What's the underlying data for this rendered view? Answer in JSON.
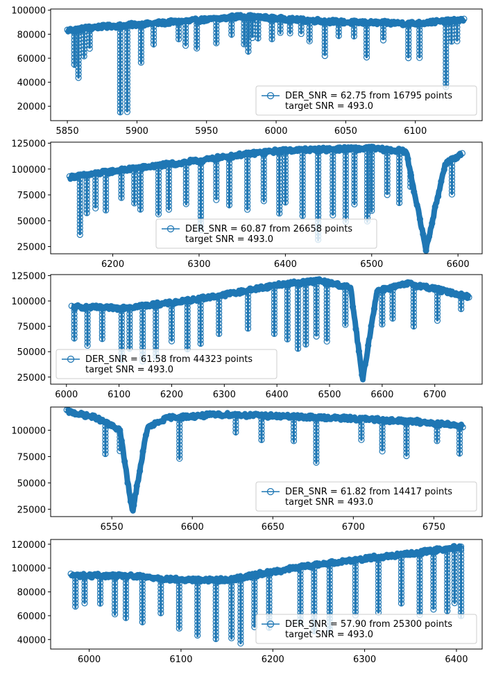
{
  "chart_data": [
    {
      "type": "line",
      "marker": "open-circle",
      "color": "#1f77b4",
      "xlim": [
        5838,
        6148
      ],
      "ylim": [
        8000,
        101000
      ],
      "xticks": [
        "5850",
        "5900",
        "5950",
        "6000",
        "6050",
        "6100"
      ],
      "yticks": [
        "20000",
        "40000",
        "60000",
        "80000",
        "100000"
      ],
      "legend": {
        "position": "lower-right",
        "lines": [
          "DER_SNR = 62.75 from 16795 points",
          "target SNR = 493.0"
        ]
      },
      "series": [
        {
          "continuum": [
            [
              5850,
              83000
            ],
            [
              5870,
              86000
            ],
            [
              5900,
              88000
            ],
            [
              5950,
              92000
            ],
            [
              5975,
              95000
            ],
            [
              6000,
              93000
            ],
            [
              6050,
              90000
            ],
            [
              6100,
              89000
            ],
            [
              6135,
              92000
            ]
          ],
          "dips": [
            [
              5855,
              52000
            ],
            [
              5858,
              43000
            ],
            [
              5862,
              60000
            ],
            [
              5866,
              68000
            ],
            [
              5888,
              13000
            ],
            [
              5893,
              15000
            ],
            [
              5903,
              55000
            ],
            [
              5912,
              69000
            ],
            [
              5930,
              74000
            ],
            [
              5935,
              70000
            ],
            [
              5943,
              67000
            ],
            [
              5957,
              71000
            ],
            [
              5968,
              77000
            ],
            [
              5977,
              70000
            ],
            [
              5980,
              63000
            ],
            [
              5983,
              77000
            ],
            [
              5987,
              74000
            ],
            [
              5997,
              74000
            ],
            [
              6003,
              80000
            ],
            [
              6010,
              80000
            ],
            [
              6018,
              80000
            ],
            [
              6024,
              73000
            ],
            [
              6035,
              62000
            ],
            [
              6045,
              76000
            ],
            [
              6056,
              76000
            ],
            [
              6065,
              60000
            ],
            [
              6077,
              75000
            ],
            [
              6095,
              60000
            ],
            [
              6103,
              60000
            ],
            [
              6122,
              35000
            ],
            [
              6126,
              72000
            ],
            [
              6130,
              74000
            ]
          ]
        }
      ]
    },
    {
      "type": "line",
      "marker": "open-circle",
      "color": "#1f77b4",
      "xlim": [
        6128,
        6628
      ],
      "ylim": [
        18000,
        126000
      ],
      "xticks": [
        "6200",
        "6300",
        "6400",
        "6500",
        "6600"
      ],
      "yticks": [
        "25000",
        "50000",
        "75000",
        "100000",
        "125000"
      ],
      "legend": {
        "position": "lower-center",
        "lines": [
          "DER_SNR = 60.87 from 26658 points",
          "target SNR = 493.0"
        ]
      },
      "series": [
        {
          "continuum": [
            [
              6150,
              92000
            ],
            [
              6200,
              98000
            ],
            [
              6250,
              103000
            ],
            [
              6300,
              108000
            ],
            [
              6350,
              114000
            ],
            [
              6400,
              118000
            ],
            [
              6450,
              119000
            ],
            [
              6500,
              120000
            ],
            [
              6540,
              117000
            ],
            [
              6563,
              22000
            ],
            [
              6585,
              105000
            ],
            [
              6605,
              115000
            ]
          ],
          "dips": [
            [
              6162,
              36000
            ],
            [
              6170,
              55000
            ],
            [
              6180,
              62000
            ],
            [
              6192,
              58000
            ],
            [
              6210,
              70000
            ],
            [
              6225,
              65000
            ],
            [
              6232,
              58000
            ],
            [
              6253,
              55000
            ],
            [
              6265,
              60000
            ],
            [
              6285,
              65000
            ],
            [
              6302,
              40000
            ],
            [
              6320,
              70000
            ],
            [
              6335,
              62000
            ],
            [
              6356,
              60000
            ],
            [
              6375,
              68000
            ],
            [
              6393,
              55000
            ],
            [
              6400,
              65000
            ],
            [
              6420,
              52000
            ],
            [
              6438,
              30000
            ],
            [
              6455,
              55000
            ],
            [
              6470,
              48000
            ],
            [
              6480,
              65000
            ],
            [
              6495,
              48000
            ],
            [
              6500,
              58000
            ],
            [
              6518,
              75000
            ],
            [
              6532,
              65000
            ],
            [
              6545,
              80000
            ],
            [
              6593,
              75000
            ]
          ]
        }
      ]
    },
    {
      "type": "line",
      "marker": "open-circle",
      "color": "#1f77b4",
      "xlim": [
        5970,
        6790
      ],
      "ylim": [
        18000,
        126000
      ],
      "xticks": [
        "6000",
        "6100",
        "6200",
        "6300",
        "6400",
        "6500",
        "6600",
        "6700"
      ],
      "yticks": [
        "25000",
        "50000",
        "75000",
        "100000",
        "125000"
      ],
      "legend": {
        "position": "lower-left",
        "lines": [
          "DER_SNR = 61.58 from 44323 points",
          "target SNR = 493.0"
        ]
      },
      "series": [
        {
          "continuum": [
            [
              6010,
              94000
            ],
            [
              6100,
              93000
            ],
            [
              6200,
              98000
            ],
            [
              6300,
              106000
            ],
            [
              6400,
              116000
            ],
            [
              6480,
              120000
            ],
            [
              6540,
              113000
            ],
            [
              6563,
              22000
            ],
            [
              6590,
              110000
            ],
            [
              6650,
              117000
            ],
            [
              6700,
              112000
            ],
            [
              6765,
              104000
            ]
          ],
          "dips": [
            [
              6015,
              60000
            ],
            [
              6040,
              55000
            ],
            [
              6068,
              60000
            ],
            [
              6105,
              40000
            ],
            [
              6120,
              50000
            ],
            [
              6145,
              40000
            ],
            [
              6170,
              42000
            ],
            [
              6200,
              60000
            ],
            [
              6230,
              50000
            ],
            [
              6255,
              55000
            ],
            [
              6290,
              65000
            ],
            [
              6345,
              70000
            ],
            [
              6395,
              65000
            ],
            [
              6420,
              60000
            ],
            [
              6440,
              50000
            ],
            [
              6455,
              55000
            ],
            [
              6475,
              65000
            ],
            [
              6495,
              60000
            ],
            [
              6530,
              75000
            ],
            [
              6600,
              75000
            ],
            [
              6620,
              80000
            ],
            [
              6660,
              72000
            ],
            [
              6705,
              80000
            ],
            [
              6750,
              90000
            ]
          ]
        }
      ]
    },
    {
      "type": "line",
      "marker": "open-circle",
      "color": "#1f77b4",
      "xlim": [
        6512,
        6780
      ],
      "ylim": [
        18000,
        122000
      ],
      "xticks": [
        "6550",
        "6600",
        "6650",
        "6700",
        "6750"
      ],
      "yticks": [
        "25000",
        "50000",
        "75000",
        "100000"
      ],
      "legend": {
        "position": "lower-right",
        "lines": [
          "DER_SNR = 61.82 from 14417 points",
          "target SNR = 493.0"
        ]
      },
      "series": [
        {
          "continuum": [
            [
              6522,
              118000
            ],
            [
              6540,
              112000
            ],
            [
              6555,
              100000
            ],
            [
              6562.8,
              22000
            ],
            [
              6572,
              102000
            ],
            [
              6585,
              112000
            ],
            [
              6620,
              115000
            ],
            [
              6660,
              113000
            ],
            [
              6700,
              111000
            ],
            [
              6740,
              108000
            ],
            [
              6768,
              104000
            ]
          ],
          "dips": [
            [
              6546,
              75000
            ],
            [
              6555,
              80000
            ],
            [
              6592,
              72000
            ],
            [
              6627,
              95000
            ],
            [
              6643,
              88000
            ],
            [
              6663,
              88000
            ],
            [
              6677,
              68000
            ],
            [
              6705,
              90000
            ],
            [
              6718,
              80000
            ],
            [
              6733,
              75000
            ],
            [
              6752,
              88000
            ],
            [
              6766,
              75000
            ]
          ]
        }
      ]
    },
    {
      "type": "line",
      "marker": "open-circle",
      "color": "#1f77b4",
      "xlim": [
        5958,
        6428
      ],
      "ylim": [
        32000,
        124000
      ],
      "xticks": [
        "6000",
        "6100",
        "6200",
        "6300",
        "6400"
      ],
      "yticks": [
        "40000",
        "60000",
        "80000",
        "100000",
        "120000"
      ],
      "legend": {
        "position": "lower-right",
        "lines": [
          "DER_SNR = 57.90 from 25300 points",
          "target SNR = 493.0"
        ]
      },
      "series": [
        {
          "continuum": [
            [
              5980,
              94000
            ],
            [
              6050,
              93000
            ],
            [
              6100,
              90000
            ],
            [
              6150,
              90000
            ],
            [
              6200,
              97000
            ],
            [
              6250,
              103000
            ],
            [
              6300,
              108000
            ],
            [
              6350,
              112000
            ],
            [
              6405,
              118000
            ]
          ],
          "dips": [
            [
              5985,
              66000
            ],
            [
              5995,
              70000
            ],
            [
              6012,
              68000
            ],
            [
              6028,
              60000
            ],
            [
              6040,
              56000
            ],
            [
              6058,
              52000
            ],
            [
              6078,
              60000
            ],
            [
              6098,
              48000
            ],
            [
              6118,
              42000
            ],
            [
              6138,
              38000
            ],
            [
              6155,
              40000
            ],
            [
              6165,
              36000
            ],
            [
              6180,
              50000
            ],
            [
              6196,
              48000
            ],
            [
              6230,
              52000
            ],
            [
              6245,
              45000
            ],
            [
              6262,
              45000
            ],
            [
              6290,
              60000
            ],
            [
              6315,
              62000
            ],
            [
              6340,
              68000
            ],
            [
              6360,
              60000
            ],
            [
              6375,
              65000
            ],
            [
              6390,
              62000
            ],
            [
              6398,
              70000
            ],
            [
              6405,
              58000
            ]
          ]
        }
      ]
    }
  ]
}
